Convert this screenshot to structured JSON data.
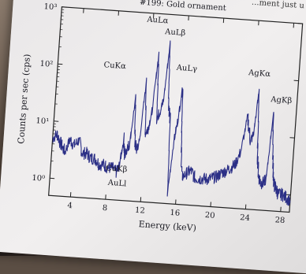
{
  "header_fragment": "...ment just u",
  "chart_data": {
    "type": "line",
    "title": "#199: Gold ornament",
    "xlabel": "Energy (keV)",
    "ylabel": "Counts per sec (cps)",
    "xlim": [
      1.5,
      29
    ],
    "ylim": [
      0.5,
      1000
    ],
    "y_scale": "log",
    "x_ticks": [
      4,
      8,
      12,
      16,
      20,
      24,
      28
    ],
    "y_ticks": [
      1,
      10,
      100,
      1000
    ],
    "y_tick_labels": [
      "10⁰",
      "10¹",
      "10²",
      "10³"
    ],
    "series_color": "#2b2f86",
    "series": [
      {
        "x": [
          1.5,
          2.0,
          2.5,
          3.0,
          3.5,
          4.0,
          4.5,
          5.0,
          5.5,
          6.0,
          6.5,
          7.0,
          7.5,
          8.0,
          8.5,
          9.0,
          9.3,
          9.6,
          9.8,
          10.0,
          10.3,
          10.6,
          10.9,
          11.2,
          11.4,
          11.7,
          12.0,
          12.3,
          12.6,
          12.9,
          13.2,
          13.5,
          13.8,
          14.1,
          14.4,
          14.7,
          15.0,
          15.3,
          15.6,
          15.9,
          16.2,
          16.5,
          17.0,
          17.5,
          18.0,
          18.5,
          19.0,
          19.5,
          20.0,
          20.5,
          21.0,
          21.5,
          22.0,
          22.5,
          23.0,
          23.5,
          24.0,
          24.3,
          24.6,
          24.9,
          25.2,
          25.5,
          25.8,
          26.1,
          26.4,
          26.7,
          27.0,
          27.3,
          27.6,
          28.0,
          28.5,
          29.0
        ],
        "y": [
          5,
          6,
          4,
          3,
          5,
          4,
          5,
          3,
          3,
          2.5,
          2.5,
          2,
          2,
          1.8,
          1.8,
          1.5,
          2,
          6,
          3,
          4,
          5,
          30,
          5,
          4,
          6,
          60,
          8,
          10,
          20,
          200,
          15,
          20,
          30,
          300,
          30,
          15,
          0.8,
          6,
          15,
          60,
          5,
          1.5,
          1.8,
          2,
          1.5,
          1.5,
          1.5,
          1.5,
          1.6,
          1.7,
          2,
          2.2,
          2.5,
          3,
          5,
          20,
          8,
          10,
          60,
          5,
          2,
          1.5,
          1.5,
          1.8,
          25,
          4,
          1.5,
          1.2,
          1,
          1,
          0.9,
          0.8
        ]
      }
    ],
    "annotations": [
      {
        "label": "CuKα",
        "x": 8.0,
        "y": 100
      },
      {
        "label": "CuKβ",
        "x": 9.0,
        "y": 1.6
      },
      {
        "label": "AuLl",
        "x": 9.2,
        "y": 0.9
      },
      {
        "label": "AuLα",
        "x": 12.5,
        "y": 700
      },
      {
        "label": "AuLβ",
        "x": 14.6,
        "y": 450
      },
      {
        "label": "AuLγ",
        "x": 16.2,
        "y": 110
      },
      {
        "label": "AgKα",
        "x": 24.5,
        "y": 110
      },
      {
        "label": "AgKβ",
        "x": 27.2,
        "y": 40
      }
    ]
  }
}
